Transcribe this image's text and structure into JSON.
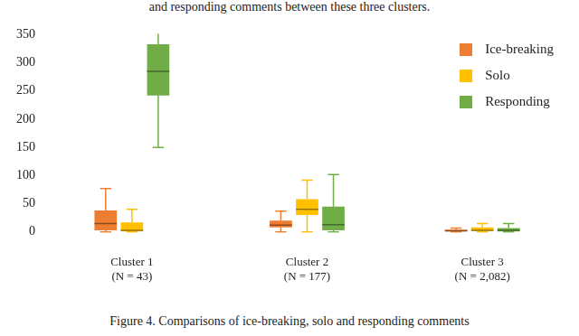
{
  "page": {
    "header": "and responding comments between these three clusters.",
    "caption": "Figure 4. Comparisons of ice-breaking, solo and responding comments"
  },
  "chart_data": {
    "type": "boxplot",
    "categories": [
      [
        "Cluster 1",
        "(N = 43)"
      ],
      [
        "Cluster 2",
        "(N = 177)"
      ],
      [
        "Cluster 3",
        "(N = 2,082)"
      ]
    ],
    "series": [
      {
        "name": "Ice-breaking",
        "color": "#ed7d31",
        "values": [
          {
            "min": 0,
            "q1": 3,
            "median": 15,
            "q3": 38,
            "max": 77
          },
          {
            "min": 0,
            "q1": 8,
            "median": 12,
            "q3": 20,
            "max": 37
          },
          {
            "min": 0,
            "q1": 1,
            "median": 2,
            "q3": 4,
            "max": 7
          }
        ]
      },
      {
        "name": "Solo",
        "color": "#ffc000",
        "values": [
          {
            "min": 0,
            "q1": 1,
            "median": 3,
            "q3": 17,
            "max": 40
          },
          {
            "min": 0,
            "q1": 30,
            "median": 40,
            "q3": 58,
            "max": 92
          },
          {
            "min": 0,
            "q1": 2,
            "median": 3,
            "q3": 8,
            "max": 15
          }
        ]
      },
      {
        "name": "Responding",
        "color": "#70ad47",
        "values": [
          {
            "min": 150,
            "q1": 242,
            "median": 285,
            "q3": 333,
            "max": 357
          },
          {
            "min": 0,
            "q1": 3,
            "median": 13,
            "q3": 45,
            "max": 102
          },
          {
            "min": 0,
            "q1": 1,
            "median": 3,
            "q3": 7,
            "max": 15
          }
        ]
      }
    ],
    "ylim": [
      0,
      350
    ],
    "yticks": [
      0,
      50,
      100,
      150,
      200,
      250,
      300,
      350
    ],
    "grid": false,
    "legend": "upper right"
  }
}
